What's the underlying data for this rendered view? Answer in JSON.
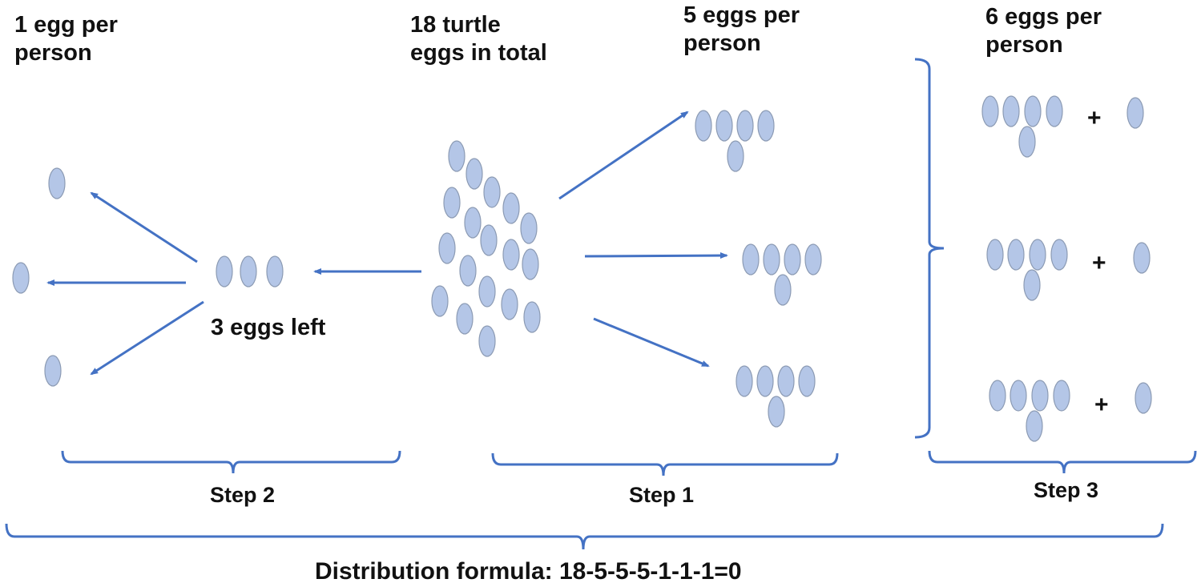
{
  "labels": {
    "one_egg_line1": "1 egg per",
    "one_egg_line2": "person",
    "total_line1": "18 turtle",
    "total_line2": "eggs in total",
    "five_eggs_line1": "5 eggs per",
    "five_eggs_line2": "person",
    "six_eggs_line1": "6 eggs per",
    "six_eggs_line2": "person",
    "left_over": "3 eggs left"
  },
  "steps": {
    "step1": "Step 1",
    "step2": "Step 2",
    "step3": "Step 3"
  },
  "formula": "Distribution formula: 18-5-5-5-1-1-1=0",
  "plus_sign": "+",
  "colors": {
    "egg_fill": "#b4c6e7",
    "egg_stroke": "#8c9bb4",
    "arrow": "#4472c4",
    "bracket": "#4472c4"
  },
  "counts": {
    "total_eggs": 18,
    "eggs_per_person_step1": 5,
    "eggs_left": 3,
    "eggs_per_person_step2": 1,
    "eggs_per_person_step3": 6
  }
}
